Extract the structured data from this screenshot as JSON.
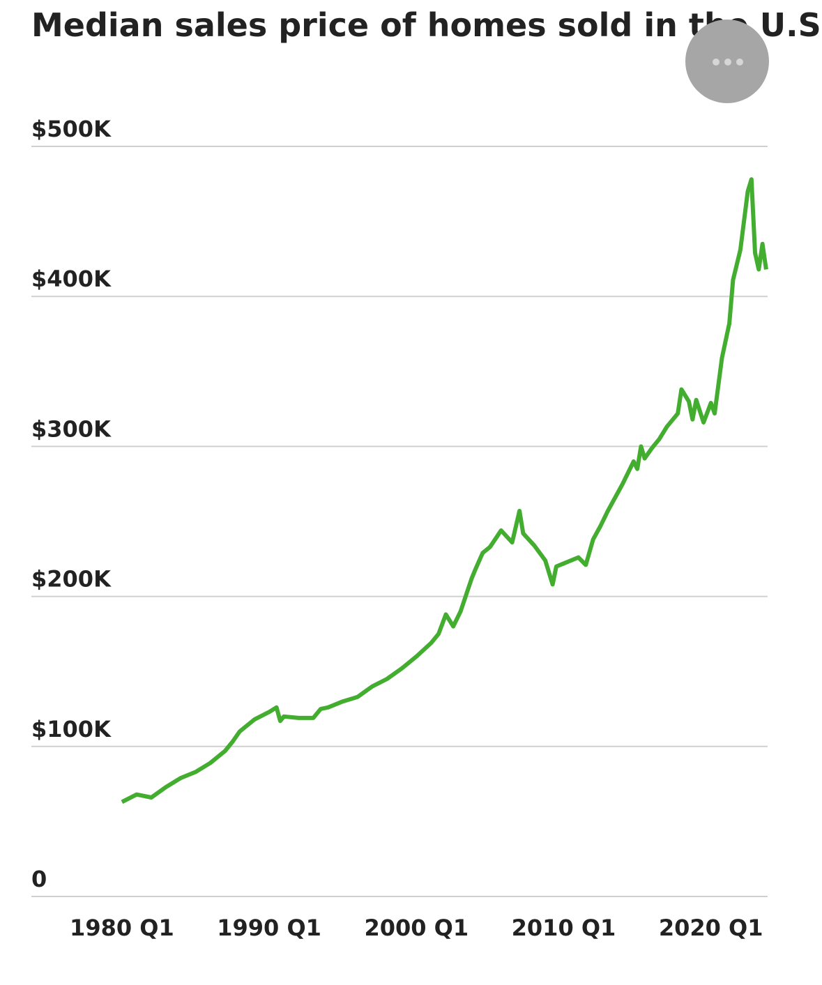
{
  "chart_data": {
    "type": "line",
    "title": "Median sales price of homes sold in the U.S.",
    "x": [
      1980.0,
      1981.0,
      1982.0,
      1983.0,
      1984.0,
      1985.0,
      1986.0,
      1987.0,
      1987.5,
      1988.0,
      1989.0,
      1990.0,
      1990.5,
      1990.75,
      1991.0,
      1992.0,
      1993.0,
      1993.5,
      1994.0,
      1995.0,
      1996.0,
      1997.0,
      1998.0,
      1999.0,
      2000.0,
      2001.0,
      2001.5,
      2002.0,
      2002.5,
      2003.0,
      2003.75,
      2004.0,
      2004.5,
      2005.0,
      2005.75,
      2006.5,
      2007.0,
      2007.25,
      2008.0,
      2008.75,
      2009.25,
      2009.5,
      2010.0,
      2011.0,
      2011.5,
      2012.0,
      2012.5,
      2013.0,
      2013.5,
      2014.0,
      2014.75,
      2015.0,
      2015.25,
      2015.5,
      2016.0,
      2016.5,
      2017.0,
      2017.75,
      2018.0,
      2018.5,
      2018.75,
      2019.0,
      2019.5,
      2020.0,
      2020.25,
      2020.75,
      2021.25,
      2021.5,
      2022.0,
      2022.5,
      2022.75,
      2023.0,
      2023.25,
      2023.5,
      2023.75
    ],
    "series": [
      {
        "color": "#43ad2f",
        "values": [
          63000,
          68000,
          66000,
          73000,
          79000,
          83000,
          89000,
          97000,
          103000,
          110000,
          118000,
          123000,
          126000,
          117000,
          120000,
          119000,
          119000,
          125000,
          126000,
          130000,
          133000,
          140000,
          145000,
          152000,
          160000,
          169000,
          175000,
          188000,
          180000,
          190000,
          212000,
          218000,
          229000,
          233000,
          244000,
          236000,
          257000,
          242000,
          234000,
          224000,
          208000,
          220000,
          222000,
          226000,
          221000,
          238000,
          247000,
          257000,
          266000,
          275000,
          290000,
          285000,
          300000,
          292000,
          299000,
          305000,
          313000,
          322000,
          338000,
          330000,
          318000,
          331000,
          316000,
          329000,
          322000,
          359000,
          382000,
          411000,
          431000,
          470000,
          478000,
          429000,
          418000,
          435000,
          418000
        ]
      }
    ],
    "xlim": [
      1973.85,
      2023.85
    ],
    "xticks": [
      {
        "value": 1980,
        "label": "1980 Q1"
      },
      {
        "value": 1990,
        "label": "1990 Q1"
      },
      {
        "value": 2000,
        "label": "2000 Q1"
      },
      {
        "value": 2010,
        "label": "2010 Q1"
      },
      {
        "value": 2020,
        "label": "2020 Q1"
      }
    ],
    "ylim": [
      0,
      500000
    ],
    "yticks": [
      0,
      {
        "value": 100000,
        "label": "$100K"
      },
      {
        "value": 200000,
        "label": "$200K"
      },
      {
        "value": 300000,
        "label": "$300K"
      },
      {
        "value": 400000,
        "label": "$400K"
      },
      {
        "value": 500000,
        "label": "$500K"
      }
    ],
    "grid": true
  }
}
